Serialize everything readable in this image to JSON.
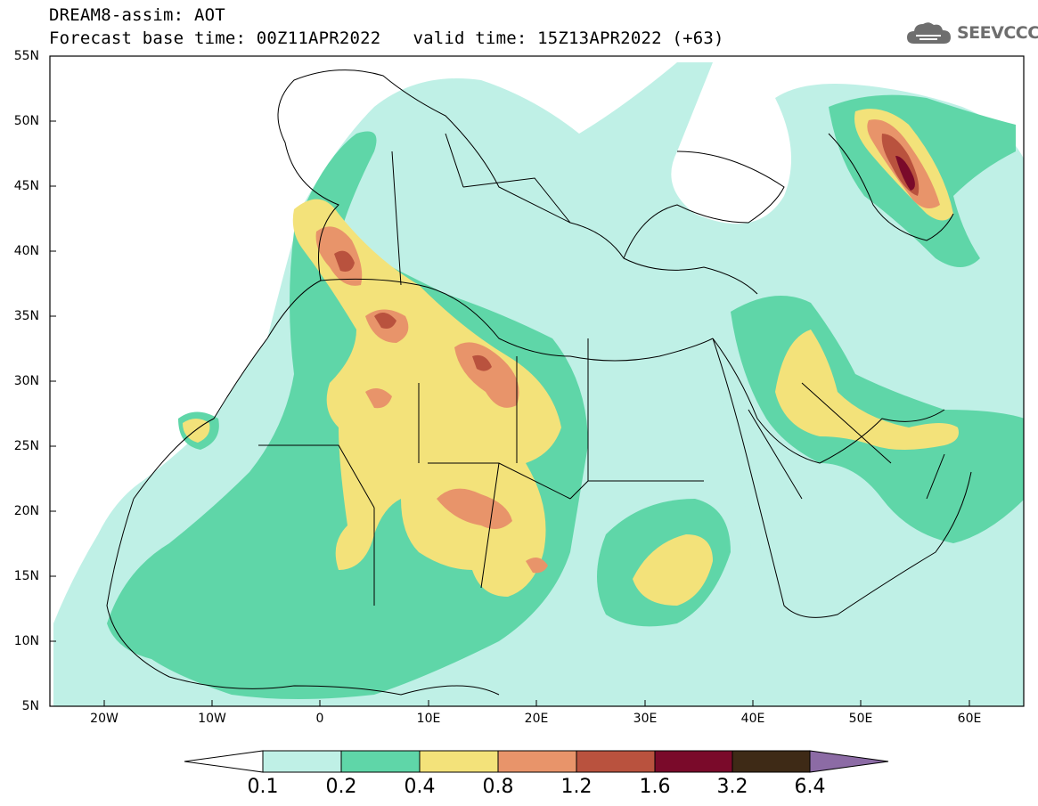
{
  "header": {
    "model_line": "DREAM8-assim: AOT",
    "base_time": "Forecast base time: 00Z11APR2022",
    "valid_time": "valid time: 15Z13APR2022 (+63)"
  },
  "logo": {
    "text": "SEEVCCC",
    "icon": "cloud-icon"
  },
  "map": {
    "latitude_labels": [
      "55N",
      "50N",
      "45N",
      "40N",
      "35N",
      "30N",
      "25N",
      "20N",
      "15N",
      "10N",
      "5N"
    ],
    "longitude_labels": [
      "20W",
      "10W",
      "0",
      "10E",
      "20E",
      "30E",
      "40E",
      "50E",
      "60E"
    ]
  },
  "colorbar": {
    "labels": [
      "0.1",
      "0.2",
      "0.4",
      "0.8",
      "1.2",
      "1.6",
      "3.2",
      "6.4"
    ],
    "colors": [
      "#ffffff",
      "#bff0e6",
      "#5fd6a8",
      "#f3e27a",
      "#e8946a",
      "#b9523e",
      "#7a0a2a",
      "#3e2a16",
      "#8c6ba5"
    ]
  }
}
